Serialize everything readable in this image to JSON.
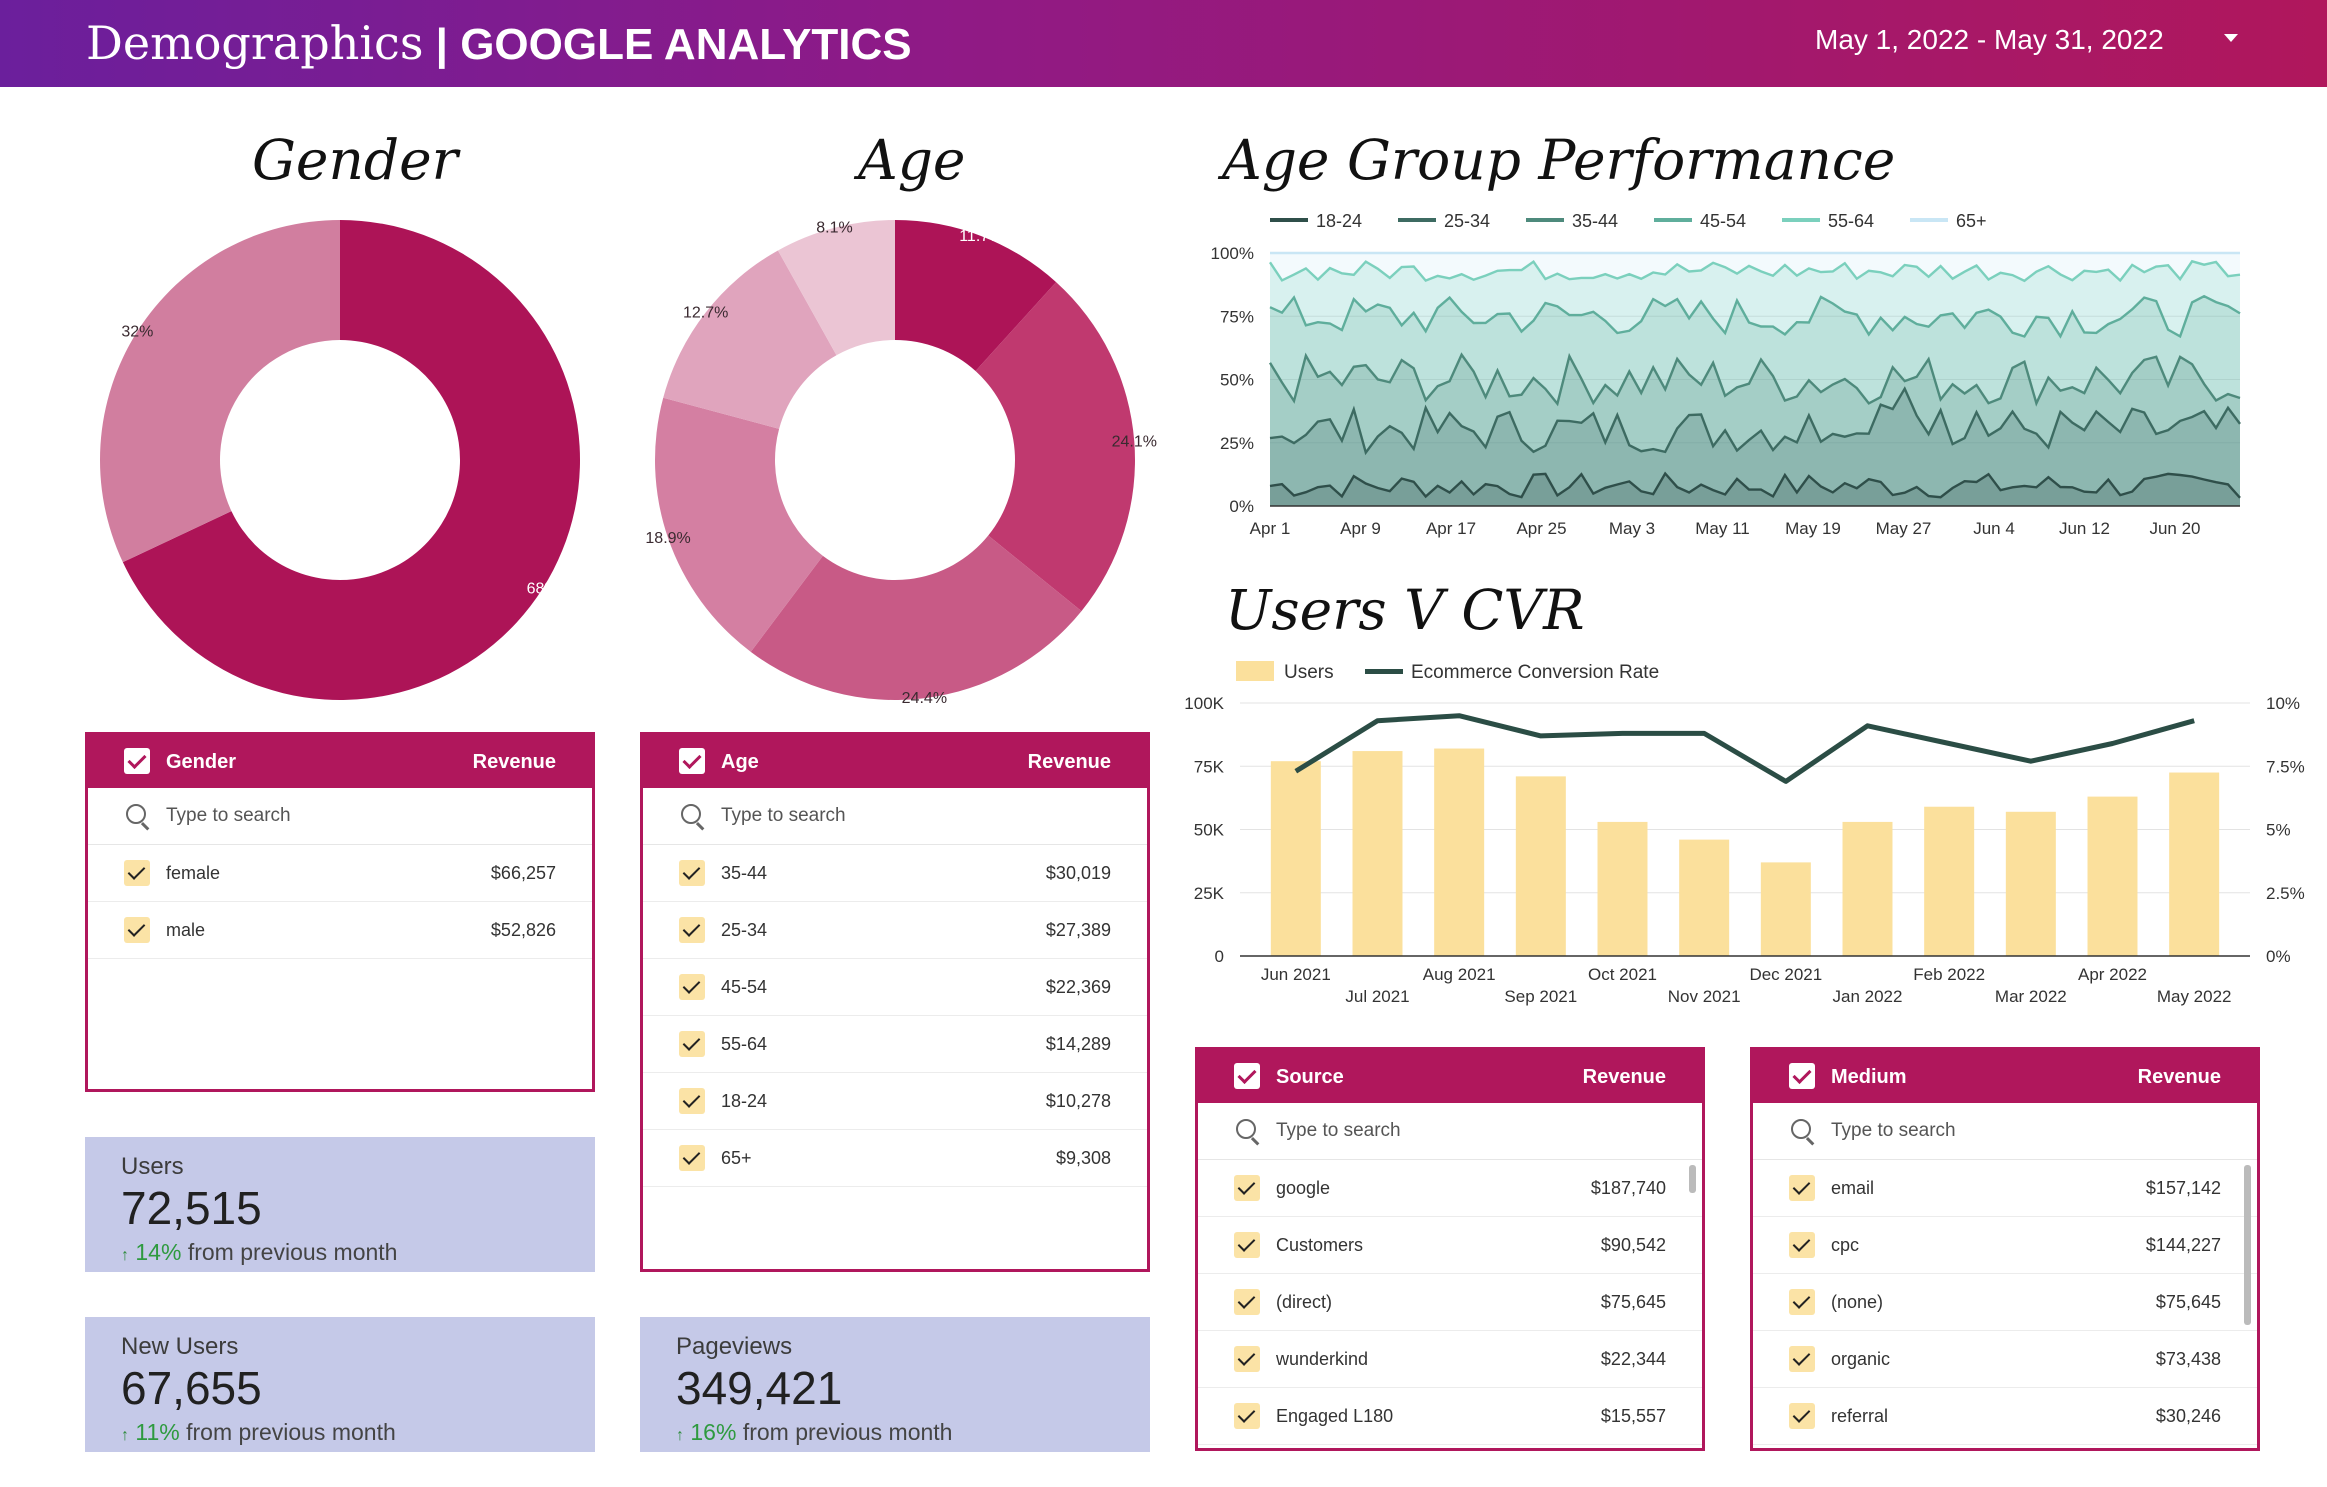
{
  "header": {
    "title_main": "Demographics",
    "title_sep": " | ",
    "title_sub": "GOOGLE ANALYTICS",
    "date_range": "May 1, 2022 - May 31, 2022"
  },
  "gender_chart": {
    "title": "Gender",
    "chart_data": {
      "type": "pie",
      "labels": [
        "female",
        "male"
      ],
      "values": [
        68,
        32
      ],
      "display": [
        "68%",
        "32%"
      ],
      "colors": [
        "#ad1457",
        "#d17e9f"
      ]
    }
  },
  "age_chart": {
    "title": "Age",
    "chart_data": {
      "type": "pie",
      "labels": [
        "18-24",
        "25-34",
        "35-44",
        "45-54",
        "55-64",
        "65+"
      ],
      "values": [
        11.7,
        24.1,
        24.4,
        18.9,
        12.7,
        8.1
      ],
      "display": [
        "11.7%",
        "24.1%",
        "24.4%",
        "18.9%",
        "12.7%",
        "8.1%"
      ],
      "colors": [
        "#ad1457",
        "#c0396f",
        "#c85a86",
        "#d47fa2",
        "#e0a4bd",
        "#ebc5d4"
      ]
    }
  },
  "age_group_perf": {
    "title": "Age Group Performance",
    "chart_data": {
      "type": "area",
      "stacked_percent": true,
      "series": [
        {
          "name": "18-24",
          "color": "#2f4f4a"
        },
        {
          "name": "25-34",
          "color": "#3d6b62"
        },
        {
          "name": "35-44",
          "color": "#4e8a7c"
        },
        {
          "name": "45-54",
          "color": "#5fae9c"
        },
        {
          "name": "55-64",
          "color": "#7bd0bd"
        },
        {
          "name": "65+",
          "color": "#c9e6f5"
        }
      ],
      "x_ticks": [
        "Apr 1",
        "Apr 9",
        "Apr 17",
        "Apr 25",
        "May 3",
        "May 11",
        "May 19",
        "May 27",
        "Jun 4",
        "Jun 12",
        "Jun 20"
      ],
      "y_ticks": [
        "0%",
        "25%",
        "50%",
        "75%",
        "100%"
      ],
      "ylim": [
        0,
        100
      ],
      "avg_cumulative_pct": [
        8,
        30,
        50,
        75,
        93,
        100
      ]
    }
  },
  "users_cvr": {
    "title": "Users V CVR",
    "chart_data": {
      "type": "bar",
      "categories": [
        "Jun 2021",
        "Jul 2021",
        "Aug 2021",
        "Sep 2021",
        "Oct 2021",
        "Nov 2021",
        "Dec 2021",
        "Jan 2022",
        "Feb 2022",
        "Mar 2022",
        "Apr 2022",
        "May 2022"
      ],
      "series": [
        {
          "name": "Users",
          "type": "bar",
          "axis": "left",
          "color": "#fbe09c",
          "values": [
            77000,
            81000,
            82000,
            71000,
            53000,
            46000,
            37000,
            53000,
            59000,
            57000,
            63000,
            72515
          ]
        },
        {
          "name": "Ecommerce Conversion Rate",
          "type": "line",
          "axis": "right",
          "color": "#2b4d45",
          "values": [
            7.3,
            9.3,
            9.5,
            8.7,
            8.8,
            8.8,
            6.9,
            9.1,
            8.4,
            7.7,
            8.4,
            9.3
          ]
        }
      ],
      "y_left_ticks": [
        "0",
        "25K",
        "50K",
        "75K",
        "100K"
      ],
      "y_right_ticks": [
        "0%",
        "2.5%",
        "5%",
        "7.5%",
        "10%"
      ],
      "ylim_left": [
        0,
        100000
      ],
      "ylim_right": [
        0,
        10
      ]
    }
  },
  "gender_table": {
    "dim": "Gender",
    "metric": "Revenue",
    "search": "Type to search",
    "rows": [
      {
        "label": "female",
        "value": "$66,257"
      },
      {
        "label": "male",
        "value": "$52,826"
      }
    ]
  },
  "age_table": {
    "dim": "Age",
    "metric": "Revenue",
    "search": "Type to search",
    "rows": [
      {
        "label": "35-44",
        "value": "$30,019"
      },
      {
        "label": "25-34",
        "value": "$27,389"
      },
      {
        "label": "45-54",
        "value": "$22,369"
      },
      {
        "label": "55-64",
        "value": "$14,289"
      },
      {
        "label": "18-24",
        "value": "$10,278"
      },
      {
        "label": "65+",
        "value": "$9,308"
      }
    ]
  },
  "source_table": {
    "dim": "Source",
    "metric": "Revenue",
    "search": "Type to search",
    "rows": [
      {
        "label": "google",
        "value": "$187,740"
      },
      {
        "label": "Customers",
        "value": "$90,542"
      },
      {
        "label": "(direct)",
        "value": "$75,645"
      },
      {
        "label": "wunderkind",
        "value": "$22,344"
      },
      {
        "label": "Engaged L180",
        "value": "$15,557"
      }
    ]
  },
  "medium_table": {
    "dim": "Medium",
    "metric": "Revenue",
    "search": "Type to search",
    "rows": [
      {
        "label": "email",
        "value": "$157,142"
      },
      {
        "label": "cpc",
        "value": "$144,227"
      },
      {
        "label": "(none)",
        "value": "$75,645"
      },
      {
        "label": "organic",
        "value": "$73,438"
      },
      {
        "label": "referral",
        "value": "$30,246"
      }
    ]
  },
  "scorecards": {
    "users": {
      "label": "Users",
      "value": "72,515",
      "pct": "14%",
      "text": " from previous month"
    },
    "new_users": {
      "label": "New Users",
      "value": "67,655",
      "pct": "11%",
      "text": " from previous month"
    },
    "pageviews": {
      "label": "Pageviews",
      "value": "349,421",
      "pct": "16%",
      "text": " from previous month"
    }
  },
  "colors": {
    "accent": "#b0175c",
    "score_bg": "#c5c9e8",
    "positive": "#2e9a3f"
  }
}
